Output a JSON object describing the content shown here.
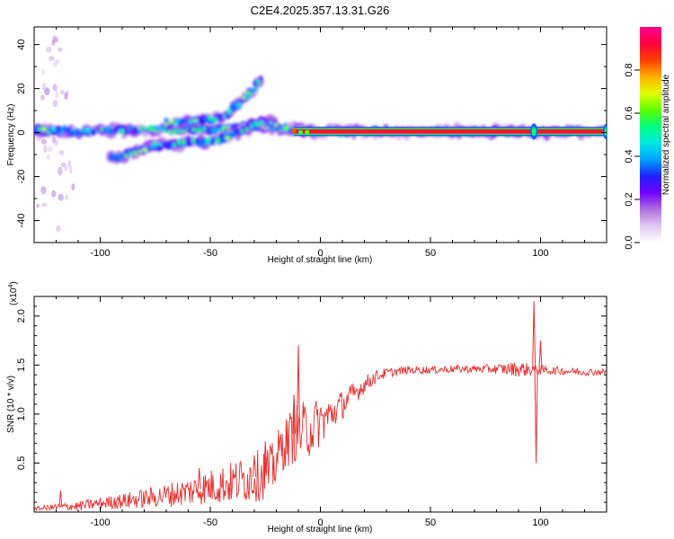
{
  "title": "C2E4.2025.357.13.31.G26",
  "chart_data": [
    {
      "type": "heatmap",
      "name": "spectrogram",
      "title": "C2E4.2025.357.13.31.G26",
      "xlabel": "Height of straight line (km)",
      "ylabel": "Frequency (Hz)",
      "xlim": [
        -130,
        130
      ],
      "ylim": [
        -50,
        48
      ],
      "xticks": [
        -100,
        -50,
        0,
        50,
        100
      ],
      "yticks": [
        -40,
        -20,
        0,
        20,
        40
      ],
      "colorbar": {
        "label": "Normalized spectral amplitude",
        "range": [
          0,
          1
        ],
        "ticks": [
          "0.0",
          "0.2",
          "0.4",
          "0.6",
          "0.8"
        ],
        "tick_values": [
          0.0,
          0.2,
          0.4,
          0.6,
          0.8
        ],
        "colors": [
          "#ffffff",
          "#e0c8f0",
          "#b070e0",
          "#7000ff",
          "#2020ff",
          "#00a0ff",
          "#00e8e0",
          "#00ff80",
          "#60ff00",
          "#e0ff00",
          "#ffb000",
          "#ff4000",
          "#ff0040",
          "#ff0090"
        ]
      },
      "ridges": [
        {
          "name": "main-tone",
          "points": [
            [
              -130,
              1
            ],
            [
              -110,
              0.5
            ],
            [
              -90,
              1
            ],
            [
              -80,
              1.5
            ],
            [
              -70,
              1
            ],
            [
              -60,
              1.5
            ],
            [
              -50,
              1
            ],
            [
              -40,
              2
            ],
            [
              -30,
              3
            ],
            [
              -20,
              2
            ],
            [
              -10,
              1
            ],
            [
              0,
              0.5
            ],
            [
              130,
              0.5
            ]
          ]
        },
        {
          "name": "lower-branch",
          "points": [
            [
              -95,
              -12
            ],
            [
              -85,
              -9
            ],
            [
              -75,
              -6
            ],
            [
              -65,
              -5
            ],
            [
              -55,
              -4
            ],
            [
              -45,
              -3
            ],
            [
              -35,
              1
            ],
            [
              -28,
              5
            ],
            [
              -20,
              4
            ]
          ]
        },
        {
          "name": "upper-branch",
          "points": [
            [
              -70,
              4
            ],
            [
              -60,
              5
            ],
            [
              -50,
              6
            ],
            [
              -45,
              7
            ],
            [
              -40,
              10
            ],
            [
              -35,
              15
            ],
            [
              -30,
              20
            ],
            [
              -27,
              25
            ]
          ]
        }
      ],
      "strong_band": {
        "x_start": -12,
        "x_end": 130,
        "frequency": 0.5
      },
      "spikes": [
        97,
        130
      ]
    },
    {
      "type": "line",
      "name": "snr",
      "xlabel": "Height of straight line (km)",
      "ylabel": "SNR (10 * v/v)",
      "y_multiplier": "(x10",
      "y_multiplier_exp": "4",
      "y_multiplier_close": ")",
      "xlim": [
        -130,
        130
      ],
      "ylim": [
        0,
        22000
      ],
      "xticks": [
        -100,
        -50,
        0,
        50,
        100
      ],
      "yticks": [
        5000,
        10000,
        15000,
        20000
      ],
      "ytick_labels": [
        "0.5",
        "1.0",
        "1.5",
        "2.0"
      ],
      "color": "#e8302f",
      "envelope": [
        [
          -130,
          300,
          200
        ],
        [
          -120,
          500,
          400
        ],
        [
          -110,
          600,
          500
        ],
        [
          -100,
          900,
          600
        ],
        [
          -90,
          1100,
          800
        ],
        [
          -80,
          1400,
          1000
        ],
        [
          -70,
          1700,
          1200
        ],
        [
          -60,
          2100,
          1500
        ],
        [
          -50,
          2600,
          1800
        ],
        [
          -40,
          3000,
          2200
        ],
        [
          -30,
          3600,
          2600
        ],
        [
          -22,
          4200,
          2800
        ],
        [
          -18,
          6500,
          2500
        ],
        [
          -12,
          8000,
          3000
        ],
        [
          -5,
          8500,
          3000
        ],
        [
          0,
          9200,
          2500
        ],
        [
          5,
          10000,
          1800
        ],
        [
          10,
          11000,
          1500
        ],
        [
          15,
          12000,
          1200
        ],
        [
          20,
          13000,
          900
        ],
        [
          25,
          13800,
          700
        ],
        [
          30,
          14200,
          500
        ],
        [
          40,
          14500,
          400
        ],
        [
          50,
          14500,
          400
        ],
        [
          60,
          14600,
          400
        ],
        [
          70,
          14600,
          400
        ],
        [
          80,
          14600,
          500
        ],
        [
          90,
          14600,
          800
        ],
        [
          100,
          14500,
          500
        ],
        [
          110,
          14400,
          400
        ],
        [
          120,
          14300,
          400
        ],
        [
          130,
          14300,
          300
        ]
      ],
      "peaks": [
        [
          -118,
          2200
        ],
        [
          -92,
          1500
        ],
        [
          -55,
          4500
        ],
        [
          -30,
          5800
        ],
        [
          -25,
          7200
        ],
        [
          -10,
          17000
        ],
        [
          -12,
          12000
        ],
        [
          97,
          21500
        ],
        [
          98,
          5000
        ],
        [
          100,
          17500
        ]
      ]
    }
  ]
}
